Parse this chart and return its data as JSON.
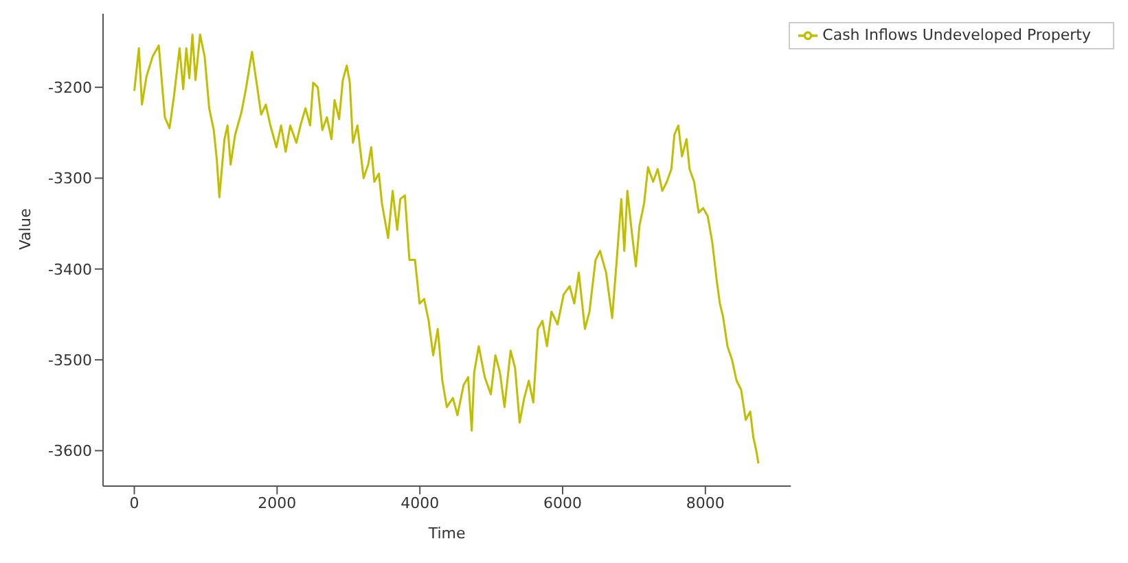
{
  "chart_data": {
    "type": "line",
    "xlabel": "Time",
    "ylabel": "Value",
    "xlim": [
      -438,
      9198
    ],
    "ylim": [
      -3639,
      -3119
    ],
    "xticks": [
      0,
      2000,
      4000,
      6000,
      8000
    ],
    "yticks": [
      -3600,
      -3500,
      -3400,
      -3300,
      -3200
    ],
    "grid": false,
    "legend": "top right",
    "marker": "none",
    "line_style": "solid",
    "series": [
      {
        "name": "Cash Inflows Undeveloped Property",
        "color": "#bfbf00",
        "x": [
          0,
          64,
          107,
          171,
          257,
          343,
          428,
          493,
          557,
          634,
          685,
          728,
          771,
          814,
          857,
          921,
          985,
          1049,
          1113,
          1156,
          1191,
          1263,
          1306,
          1349,
          1413,
          1499,
          1563,
          1627,
          1649,
          1713,
          1777,
          1842,
          1906,
          1991,
          2056,
          2120,
          2184,
          2270,
          2334,
          2398,
          2463,
          2505,
          2570,
          2634,
          2698,
          2762,
          2805,
          2869,
          2921,
          2976,
          3019,
          3062,
          3126,
          3212,
          3276,
          3319,
          3362,
          3426,
          3469,
          3555,
          3619,
          3683,
          3726,
          3790,
          3854,
          3932,
          3996,
          4060,
          4123,
          4187,
          4251,
          4315,
          4378,
          4463,
          4527,
          4612,
          4676,
          4727,
          4761,
          4825,
          4909,
          4994,
          5058,
          5122,
          5186,
          5271,
          5334,
          5398,
          5462,
          5526,
          5589,
          5653,
          5717,
          5781,
          5844,
          5929,
          6014,
          6099,
          6163,
          6227,
          6312,
          6376,
          6461,
          6524,
          6609,
          6694,
          6758,
          6822,
          6864,
          6907,
          6971,
          7026,
          7077,
          7141,
          7196,
          7268,
          7332,
          7396,
          7460,
          7523,
          7566,
          7621,
          7672,
          7736,
          7778,
          7842,
          7906,
          7969,
          8033,
          8097,
          8161,
          8203,
          8246,
          8309,
          8373,
          8437,
          8501,
          8565,
          8628,
          8671,
          8713,
          8743
        ],
        "values": [
          -3204,
          -3157,
          -3219,
          -3188,
          -3166,
          -3154,
          -3233,
          -3245,
          -3209,
          -3157,
          -3202,
          -3157,
          -3190,
          -3142,
          -3192,
          -3142,
          -3166,
          -3223,
          -3247,
          -3280,
          -3321,
          -3257,
          -3242,
          -3285,
          -3252,
          -3228,
          -3202,
          -3171,
          -3161,
          -3195,
          -3230,
          -3219,
          -3242,
          -3266,
          -3242,
          -3271,
          -3242,
          -3261,
          -3240,
          -3223,
          -3242,
          -3195,
          -3200,
          -3247,
          -3233,
          -3257,
          -3214,
          -3235,
          -3192,
          -3176,
          -3195,
          -3261,
          -3242,
          -3300,
          -3285,
          -3266,
          -3304,
          -3295,
          -3328,
          -3366,
          -3314,
          -3357,
          -3323,
          -3319,
          -3390,
          -3390,
          -3438,
          -3433,
          -3457,
          -3495,
          -3466,
          -3523,
          -3552,
          -3542,
          -3561,
          -3528,
          -3519,
          -3578,
          -3514,
          -3485,
          -3519,
          -3538,
          -3495,
          -3514,
          -3552,
          -3490,
          -3509,
          -3569,
          -3542,
          -3523,
          -3547,
          -3466,
          -3457,
          -3485,
          -3447,
          -3461,
          -3428,
          -3419,
          -3438,
          -3404,
          -3466,
          -3447,
          -3390,
          -3380,
          -3404,
          -3454,
          -3390,
          -3323,
          -3380,
          -3314,
          -3361,
          -3397,
          -3352,
          -3328,
          -3288,
          -3304,
          -3290,
          -3314,
          -3304,
          -3290,
          -3252,
          -3242,
          -3276,
          -3257,
          -3290,
          -3304,
          -3338,
          -3333,
          -3342,
          -3371,
          -3414,
          -3438,
          -3452,
          -3485,
          -3500,
          -3523,
          -3533,
          -3566,
          -3557,
          -3585,
          -3600,
          -3614
        ]
      }
    ]
  }
}
